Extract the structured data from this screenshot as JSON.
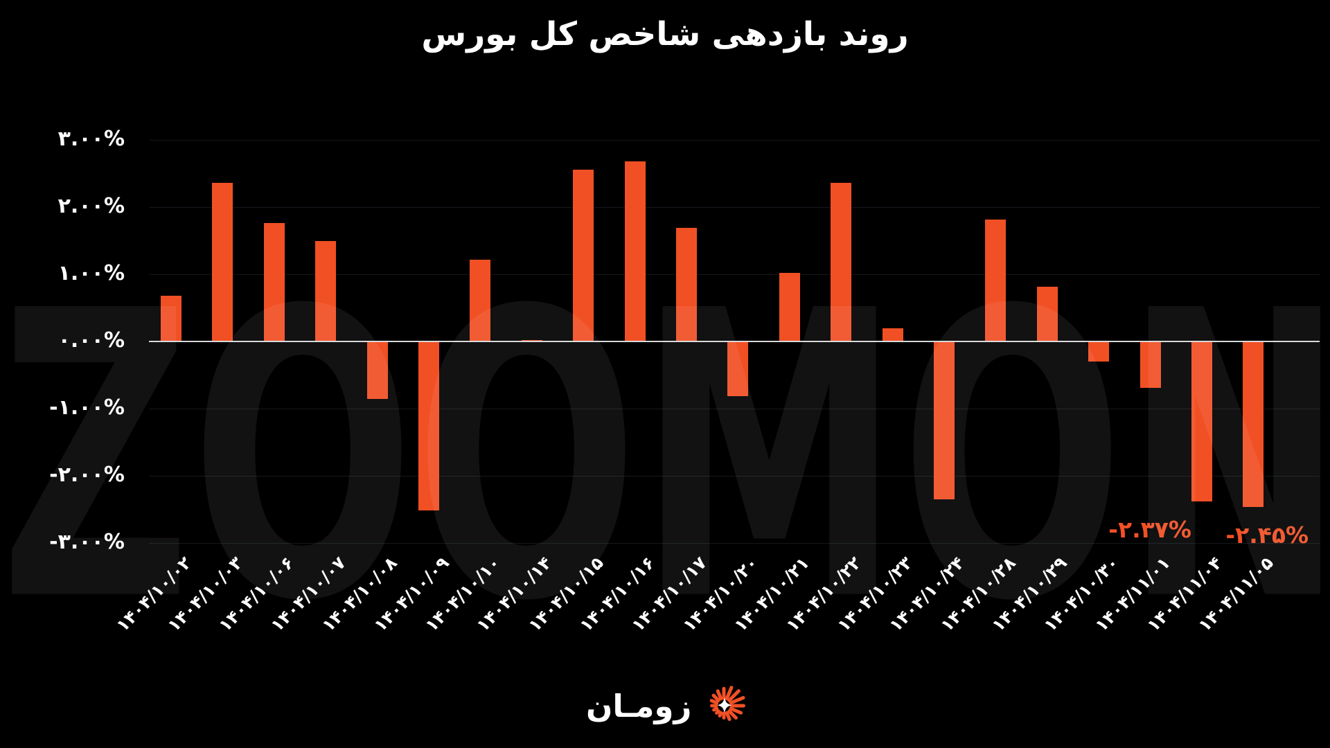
{
  "title": "روند بازدهی شاخص کل بورس",
  "watermark": "ZOOMON",
  "logo": {
    "text": "زومـان",
    "icon": "zooman-starburst-icon"
  },
  "colors": {
    "background": "#000000",
    "bar": "#F15025",
    "value_label": "#F15025",
    "zero_line": "#D6D8DA",
    "gridline": "rgba(120,150,180,0.16)",
    "text": "#FFFFFF",
    "watermark": "rgba(255,255,255,0.07)"
  },
  "chart_data": {
    "type": "bar",
    "title": "روند بازدهی شاخص کل بورس",
    "xlabel": "",
    "ylabel": "",
    "ylim": [
      -3,
      3
    ],
    "grid": "horizontal",
    "legend": "none",
    "y_ticks": [
      {
        "label": "۳.۰۰%",
        "value": 3
      },
      {
        "label": "۲.۰۰%",
        "value": 2
      },
      {
        "label": "۱.۰۰%",
        "value": 1
      },
      {
        "label": "۰.۰۰%",
        "value": 0
      },
      {
        "label": "-۱.۰۰%",
        "value": -1
      },
      {
        "label": "-۲.۰۰%",
        "value": -2
      },
      {
        "label": "-۳.۰۰%",
        "value": -3
      }
    ],
    "categories": [
      "۱۴۰۴/۱۰/۰۲",
      "۱۴۰۴/۱۰/۰۳",
      "۱۴۰۴/۱۰/۰۶",
      "۱۴۰۴/۱۰/۰۷",
      "۱۴۰۴/۱۰/۰۸",
      "۱۴۰۴/۱۰/۰۹",
      "۱۴۰۴/۱۰/۱۰",
      "۱۴۰۴/۱۰/۱۴",
      "۱۴۰۴/۱۰/۱۵",
      "۱۴۰۴/۱۰/۱۶",
      "۱۴۰۴/۱۰/۱۷",
      "۱۴۰۴/۱۰/۲۰",
      "۱۴۰۴/۱۰/۲۱",
      "۱۴۰۴/۱۰/۲۲",
      "۱۴۰۴/۱۰/۲۳",
      "۱۴۰۴/۱۰/۲۴",
      "۱۴۰۴/۱۰/۲۸",
      "۱۴۰۴/۱۰/۲۹",
      "۱۴۰۴/۱۰/۳۰",
      "۱۴۰۴/۱۱/۰۱",
      "۱۴۰۴/۱۱/۰۴",
      "۱۴۰۴/۱۱/۰۵"
    ],
    "values": [
      0.68,
      2.36,
      1.76,
      1.49,
      -0.85,
      -2.5,
      1.22,
      0.02,
      2.56,
      2.68,
      1.69,
      -0.8,
      1.02,
      2.36,
      0.2,
      -2.34,
      1.81,
      0.81,
      -0.29,
      -0.68,
      -2.37,
      -2.45
    ],
    "data_labels": [
      {
        "index": 20,
        "label": "-۲.۳۷%"
      },
      {
        "index": 21,
        "label": "-۲.۴۵%"
      }
    ]
  }
}
